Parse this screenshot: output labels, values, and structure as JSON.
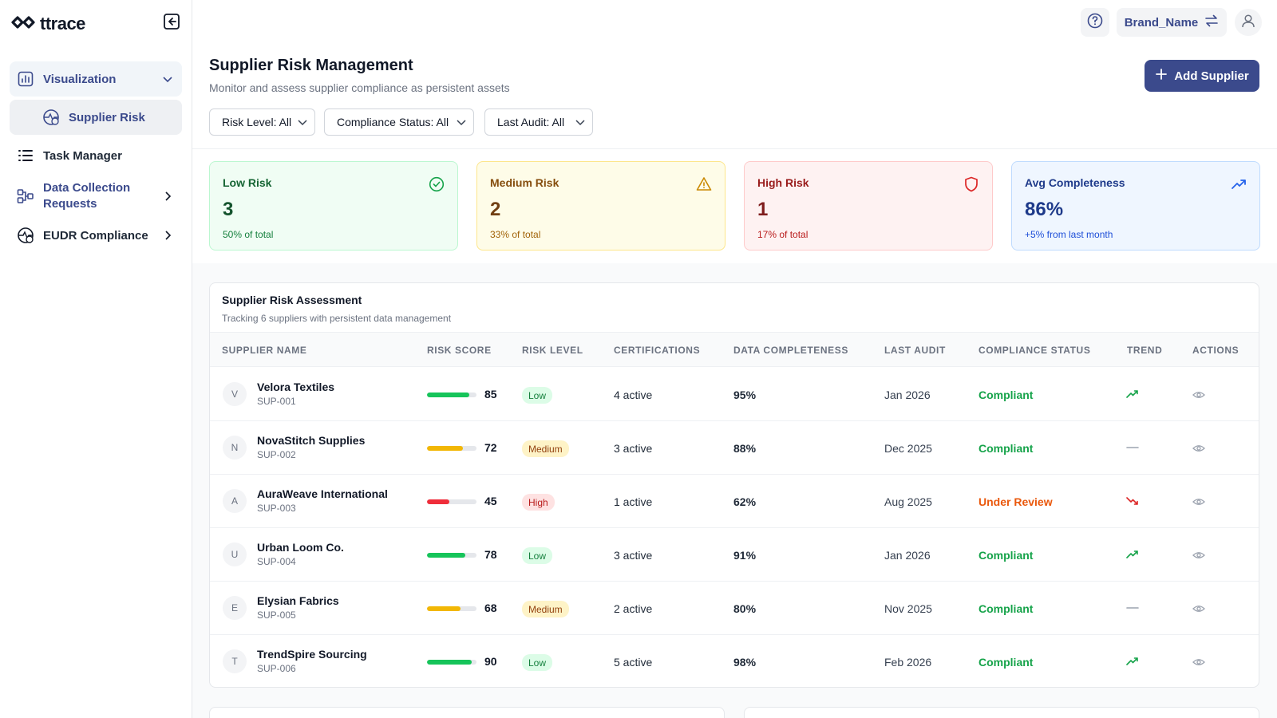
{
  "app": {
    "logo_text": "ttrace"
  },
  "sidebar": {
    "items": [
      {
        "label": "Visualization"
      },
      {
        "label": "Supplier Risk"
      },
      {
        "label": "Task Manager"
      },
      {
        "label": "Data Collection Requests"
      },
      {
        "label": "EUDR Compliance"
      }
    ]
  },
  "header": {
    "brand_name": "Brand_Name"
  },
  "page": {
    "title": "Supplier Risk Management",
    "subtitle": "Monitor and assess supplier compliance as persistent assets",
    "add_button": "Add Supplier"
  },
  "filters": {
    "risk_level": "Risk Level: All",
    "compliance_status": "Compliance Status: All",
    "last_audit": "Last Audit: All"
  },
  "cards": {
    "low": {
      "label": "Low Risk",
      "value": "3",
      "note": "50% of total"
    },
    "medium": {
      "label": "Medium Risk",
      "value": "2",
      "note": "33% of total"
    },
    "high": {
      "label": "High Risk",
      "value": "1",
      "note": "17% of total"
    },
    "avg": {
      "label": "Avg Completeness",
      "value": "86%",
      "note": "+5% from last month"
    }
  },
  "table": {
    "title": "Supplier Risk Assessment",
    "subtitle": "Tracking 6 suppliers with persistent data management",
    "columns": [
      "SUPPLIER NAME",
      "RISK SCORE",
      "RISK LEVEL",
      "CERTIFICATIONS",
      "DATA COMPLETENESS",
      "LAST AUDIT",
      "COMPLIANCE STATUS",
      "TREND",
      "ACTIONS"
    ],
    "rows": [
      {
        "initial": "V",
        "name": "Velora Textiles",
        "id": "SUP-001",
        "score": 85,
        "level": "Low",
        "certs": "4 active",
        "completeness": "95%",
        "audit": "Jan 2026",
        "status": "Compliant",
        "trend": "up"
      },
      {
        "initial": "N",
        "name": "NovaStitch Supplies",
        "id": "SUP-002",
        "score": 72,
        "level": "Medium",
        "certs": "3 active",
        "completeness": "88%",
        "audit": "Dec 2025",
        "status": "Compliant",
        "trend": "flat"
      },
      {
        "initial": "A",
        "name": "AuraWeave International",
        "id": "SUP-003",
        "score": 45,
        "level": "High",
        "certs": "1 active",
        "completeness": "62%",
        "audit": "Aug 2025",
        "status": "Under Review",
        "trend": "down"
      },
      {
        "initial": "U",
        "name": "Urban Loom Co.",
        "id": "SUP-004",
        "score": 78,
        "level": "Low",
        "certs": "3 active",
        "completeness": "91%",
        "audit": "Jan 2026",
        "status": "Compliant",
        "trend": "up"
      },
      {
        "initial": "E",
        "name": "Elysian Fabrics",
        "id": "SUP-005",
        "score": 68,
        "level": "Medium",
        "certs": "2 active",
        "completeness": "80%",
        "audit": "Nov 2025",
        "status": "Compliant",
        "trend": "flat"
      },
      {
        "initial": "T",
        "name": "TrendSpire Sourcing",
        "id": "SUP-006",
        "score": 90,
        "level": "Low",
        "certs": "5 active",
        "completeness": "98%",
        "audit": "Feb 2026",
        "status": "Compliant",
        "trend": "up"
      }
    ]
  },
  "colors": {
    "accent": "#3b4a8c",
    "bar_green": "#16c45a",
    "bar_yellow": "#f2b705",
    "bar_red": "#ef2d3a",
    "status_compliant": "#16a34a",
    "status_review": "#ea580c"
  },
  "icons": [
    "collapse-sidebar-icon",
    "chart-icon",
    "globe-risk-icon",
    "list-icon",
    "workflow-icon",
    "globe-leaf-icon",
    "help-icon",
    "swap-icon",
    "user-icon",
    "plus-icon",
    "check-circle-icon",
    "warning-icon",
    "shield-icon",
    "trend-up-icon",
    "trend-down-icon",
    "trend-flat-icon",
    "eye-icon"
  ]
}
